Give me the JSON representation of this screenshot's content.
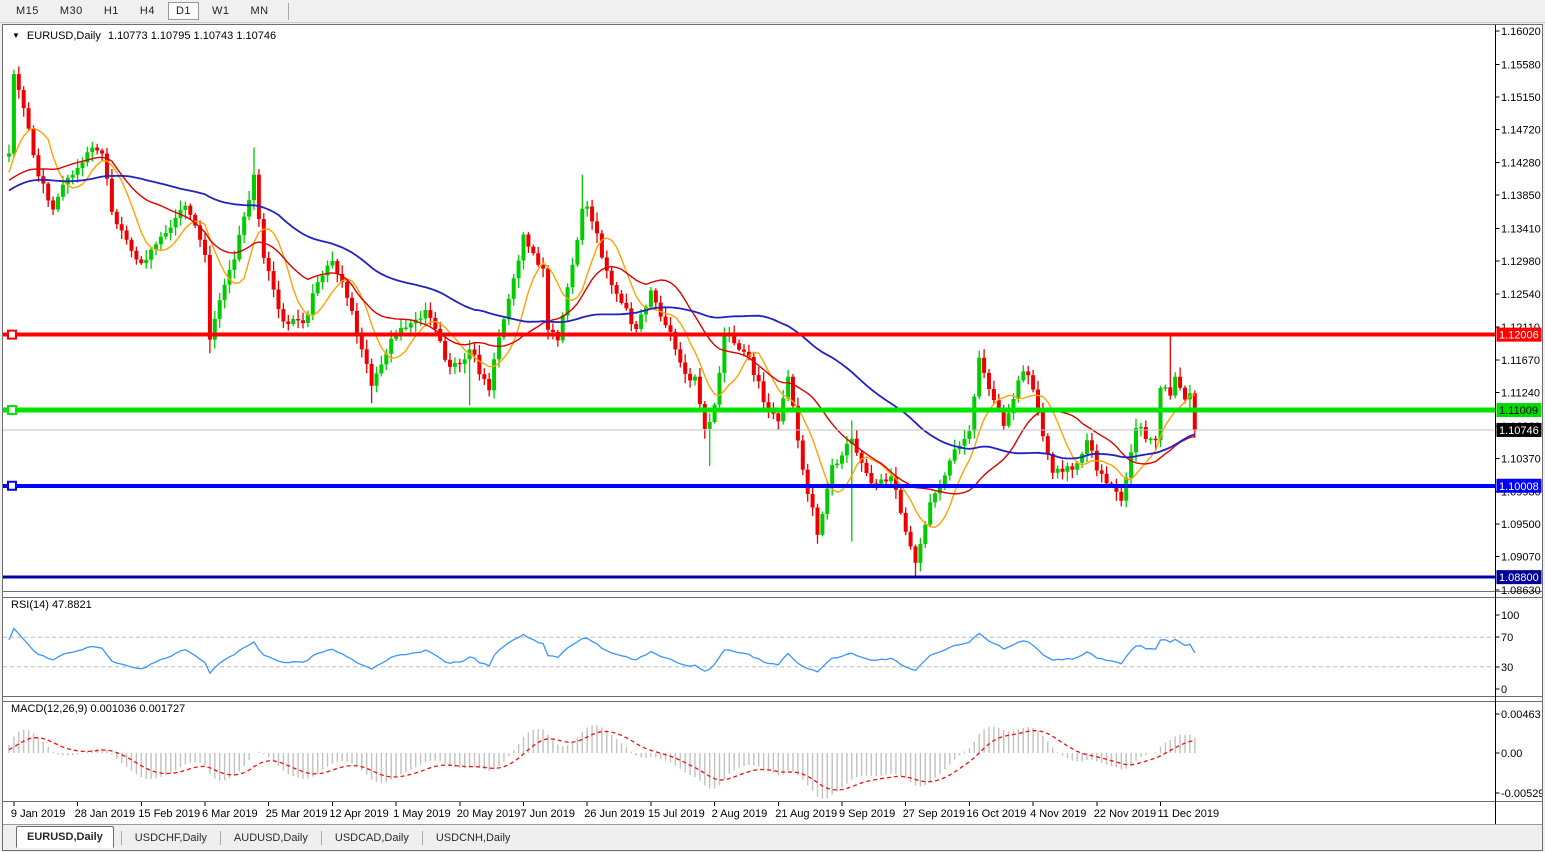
{
  "toolbar": {
    "timeframes": [
      {
        "label": "M15",
        "active": false
      },
      {
        "label": "M30",
        "active": false
      },
      {
        "label": "H1",
        "active": false
      },
      {
        "label": "H4",
        "active": false
      },
      {
        "label": "D1",
        "active": true
      },
      {
        "label": "W1",
        "active": false
      },
      {
        "label": "MN",
        "active": false
      }
    ]
  },
  "chart_header": {
    "dropdown_icon": "▼",
    "symbol": "EURUSD,Daily",
    "ohlc": "1.10773 1.10795 1.10743 1.10746"
  },
  "price_axis": {
    "ticks": [
      "1.16020",
      "1.15580",
      "1.15150",
      "1.14720",
      "1.14280",
      "1.13850",
      "1.13410",
      "1.12980",
      "1.12540",
      "1.12110",
      "1.11670",
      "1.11240",
      "1.10800",
      "1.10370",
      "1.09930",
      "1.09500",
      "1.09070",
      "1.08630"
    ],
    "badges": [
      {
        "value": "1.12006",
        "price": 1.12006,
        "bg": "#FF0000",
        "fg": "#FFFFFF"
      },
      {
        "value": "1.11009",
        "price": 1.11009,
        "bg": "#00DC00",
        "fg": "#000000"
      },
      {
        "value": "1.10746",
        "price": 1.10746,
        "bg": "#000000",
        "fg": "#FFFFFF"
      },
      {
        "value": "1.10008",
        "price": 1.10008,
        "bg": "#0000FF",
        "fg": "#FFFFFF"
      },
      {
        "value": "1.08800",
        "price": 1.088,
        "bg": "#000096",
        "fg": "#FFFFFF"
      }
    ]
  },
  "hlines": [
    {
      "price": 1.12006,
      "color": "#FF0000",
      "width": 4,
      "marker": true
    },
    {
      "price": 1.11009,
      "color": "#00E400",
      "width": 5,
      "marker": true
    },
    {
      "price": 1.10008,
      "color": "#0000FF",
      "width": 4,
      "marker": true
    },
    {
      "price": 1.088,
      "color": "#0000A8",
      "width": 3,
      "marker": false
    }
  ],
  "current_price": {
    "value": 1.10746,
    "line_color": "#C0C0C0"
  },
  "date_axis": {
    "labels": [
      "9 Jan 2019",
      "28 Jan 2019",
      "15 Feb 2019",
      "6 Mar 2019",
      "25 Mar 2019",
      "12 Apr 2019",
      "1 May 2019",
      "20 May 2019",
      "7 Jun 2019",
      "26 Jun 2019",
      "15 Jul 2019",
      "2 Aug 2019",
      "21 Aug 2019",
      "9 Sep 2019",
      "27 Sep 2019",
      "16 Oct 2019",
      "4 Nov 2019",
      "22 Nov 2019",
      "11 Dec 2019"
    ],
    "bars": [
      1,
      14,
      27,
      40,
      53,
      66,
      79,
      92,
      105,
      118,
      131,
      144,
      157,
      170,
      183,
      196,
      209,
      222,
      235
    ]
  },
  "rsi": {
    "title": "RSI(14) 47.8821",
    "period": 14,
    "levels": [
      70,
      30
    ],
    "axis_labels": [
      "100",
      "70",
      "30",
      "0"
    ],
    "line_color": "#3A96FF",
    "level_color": "#BBBBBB"
  },
  "macd": {
    "title": "MACD(12,26,9) 0.001036 0.001727",
    "fast": 12,
    "slow": 26,
    "signal": 9,
    "axis_labels": [
      "0.00463",
      "0.00",
      "-0.00529"
    ],
    "hist_color": "#C2C2C2",
    "signal_color": "#EE1111"
  },
  "tabs": [
    {
      "label": "EURUSD,Daily",
      "active": true
    },
    {
      "label": "USDCHF,Daily",
      "active": false
    },
    {
      "label": "AUDUSD,Daily",
      "active": false
    },
    {
      "label": "USDCAD,Daily",
      "active": false
    },
    {
      "label": "USDCNH,Daily",
      "active": false
    }
  ],
  "chart_data": {
    "type": "candlestick",
    "symbol": "EURUSD",
    "timeframe": "Daily",
    "bars_total": 243,
    "price_axis_top": 1.1602,
    "price_axis_bottom": 1.0863,
    "up_color": "#00CC00",
    "down_color": "#EE0000",
    "close_anchors": [
      [
        0,
        1.144
      ],
      [
        1,
        1.1545
      ],
      [
        3,
        1.15
      ],
      [
        4,
        1.1473
      ],
      [
        6,
        1.141
      ],
      [
        9,
        1.1366
      ],
      [
        12,
        1.1408
      ],
      [
        17,
        1.1448
      ],
      [
        19,
        1.144
      ],
      [
        21,
        1.1363
      ],
      [
        24,
        1.1326
      ],
      [
        27,
        1.1295
      ],
      [
        30,
        1.132
      ],
      [
        32,
        1.1335
      ],
      [
        36,
        1.1371
      ],
      [
        40,
        1.1306
      ],
      [
        41,
        1.1194
      ],
      [
        43,
        1.1246
      ],
      [
        46,
        1.13
      ],
      [
        50,
        1.1412
      ],
      [
        52,
        1.1302
      ],
      [
        56,
        1.1218
      ],
      [
        60,
        1.1216
      ],
      [
        63,
        1.127
      ],
      [
        66,
        1.1298
      ],
      [
        70,
        1.1232
      ],
      [
        74,
        1.1133
      ],
      [
        78,
        1.1195
      ],
      [
        81,
        1.121
      ],
      [
        85,
        1.1233
      ],
      [
        90,
        1.1158
      ],
      [
        93,
        1.1168
      ],
      [
        94,
        1.1181
      ],
      [
        98,
        1.1127
      ],
      [
        99,
        1.1168
      ],
      [
        102,
        1.1248
      ],
      [
        105,
        1.1333
      ],
      [
        109,
        1.1288
      ],
      [
        110,
        1.1207
      ],
      [
        112,
        1.1193
      ],
      [
        113,
        1.1226
      ],
      [
        115,
        1.1293
      ],
      [
        117,
        1.1367
      ],
      [
        118,
        1.137
      ],
      [
        122,
        1.1285
      ],
      [
        128,
        1.1208
      ],
      [
        131,
        1.1259
      ],
      [
        134,
        1.1213
      ],
      [
        139,
        1.114
      ],
      [
        140,
        1.1145
      ],
      [
        142,
        1.1076
      ],
      [
        143,
        1.1085
      ],
      [
        144,
        1.1108
      ],
      [
        146,
        1.1201
      ],
      [
        151,
        1.1171
      ],
      [
        155,
        1.1098
      ],
      [
        157,
        1.1086
      ],
      [
        159,
        1.1145
      ],
      [
        163,
        1.099
      ],
      [
        164,
        1.0972
      ],
      [
        165,
        1.0936
      ],
      [
        168,
        1.1028
      ],
      [
        172,
        1.1063
      ],
      [
        176,
        1.1004
      ],
      [
        180,
        1.1013
      ],
      [
        183,
        1.094
      ],
      [
        185,
        1.0899
      ],
      [
        188,
        1.0979
      ],
      [
        192,
        1.1034
      ],
      [
        196,
        1.1073
      ],
      [
        198,
        1.117
      ],
      [
        199,
        1.115
      ],
      [
        203,
        1.108
      ],
      [
        207,
        1.1152
      ],
      [
        209,
        1.1128
      ],
      [
        213,
        1.1018
      ],
      [
        217,
        1.1022
      ],
      [
        220,
        1.1061
      ],
      [
        222,
        1.1021
      ],
      [
        227,
        1.0981
      ],
      [
        230,
        1.1077
      ],
      [
        234,
        1.1061
      ],
      [
        235,
        1.113
      ],
      [
        236,
        1.1131
      ],
      [
        237,
        1.112
      ],
      [
        238,
        1.1145
      ],
      [
        240,
        1.1115
      ],
      [
        241,
        1.1123
      ],
      [
        242,
        1.10746
      ]
    ],
    "wick_spikes": [
      [
        41,
        "low",
        1.1176
      ],
      [
        50,
        "high",
        1.1448
      ],
      [
        74,
        "low",
        1.111
      ],
      [
        94,
        "low",
        1.1107
      ],
      [
        117,
        "high",
        1.1412
      ],
      [
        143,
        "low",
        1.1027
      ],
      [
        165,
        "low",
        1.0926
      ],
      [
        172,
        "high",
        1.1087
      ],
      [
        172,
        "low",
        1.0927
      ],
      [
        185,
        "low",
        1.0879
      ],
      [
        199,
        "high",
        1.1179
      ],
      [
        237,
        "high",
        1.1201
      ]
    ],
    "prehistory_anchors": [
      [
        -56,
        1.132
      ],
      [
        -44,
        1.1418
      ],
      [
        -32,
        1.1338
      ],
      [
        -20,
        1.1458
      ],
      [
        -10,
        1.1352
      ],
      [
        -1,
        1.1436
      ]
    ],
    "moving_averages": [
      {
        "period": 8,
        "color": "#FFA200",
        "width": 1.4
      },
      {
        "period": 21,
        "color": "#DC0000",
        "width": 1.4
      },
      {
        "period": 55,
        "color": "#2222BE",
        "width": 1.8
      }
    ]
  }
}
